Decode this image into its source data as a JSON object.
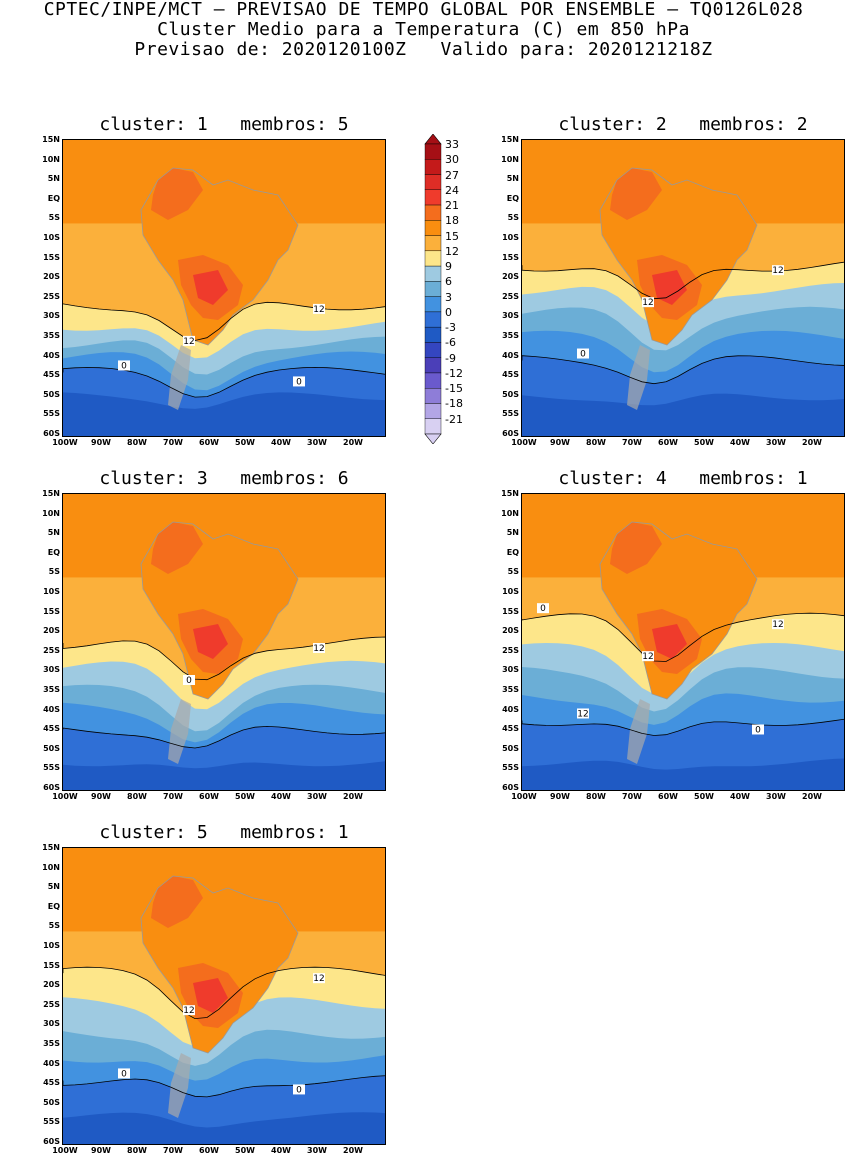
{
  "header": {
    "line1": "CPTEC/INPE/MCT – PREVISAO DE TEMPO GLOBAL POR ENSEMBLE – TQ0126L028",
    "line2": "Cluster Medio para a Temperatura (C) em 850 hPa",
    "line3": "Previsao de: 2020120100Z   Valido para: 2020121218Z"
  },
  "lat_labels": [
    "15N",
    "10N",
    "5N",
    "EQ",
    "5S",
    "10S",
    "15S",
    "20S",
    "25S",
    "30S",
    "35S",
    "40S",
    "45S",
    "50S",
    "55S",
    "60S"
  ],
  "lon_labels": [
    "100W",
    "90W",
    "80W",
    "70W",
    "60W",
    "50W",
    "40W",
    "30W",
    "20W"
  ],
  "colorbar": {
    "labels": [
      "33",
      "30",
      "27",
      "24",
      "21",
      "18",
      "15",
      "12",
      "9",
      "6",
      "3",
      "0",
      "-3",
      "-6",
      "-9",
      "-12",
      "-15",
      "-18",
      "-21"
    ],
    "colors": [
      "#a50f15",
      "#c41a1a",
      "#de2d26",
      "#ef3b2c",
      "#f46d1d",
      "#f98e10",
      "#fbb03b",
      "#fde68a",
      "#9ecae1",
      "#6baed6",
      "#4292e0",
      "#2f6fd6",
      "#1f5ac4",
      "#3446c0",
      "#4b3fb8",
      "#6a5acd",
      "#8e7dd8",
      "#b3a6e6",
      "#d8d0f2"
    ]
  },
  "panels": [
    {
      "title": "cluster: 1   membros: 5",
      "contour_labels": [
        "12",
        "12",
        "0",
        "0"
      ]
    },
    {
      "title": "cluster: 2   membros: 2",
      "contour_labels": [
        "12",
        "12",
        "0"
      ]
    },
    {
      "title": "cluster: 3   membros: 6",
      "contour_labels": [
        "12",
        "0"
      ]
    },
    {
      "title": "cluster: 4   membros: 1",
      "contour_labels": [
        "12",
        "12",
        "12",
        "0",
        "0"
      ]
    },
    {
      "title": "cluster: 5   membros: 1",
      "contour_labels": [
        "12",
        "12",
        "0",
        "0"
      ]
    }
  ]
}
